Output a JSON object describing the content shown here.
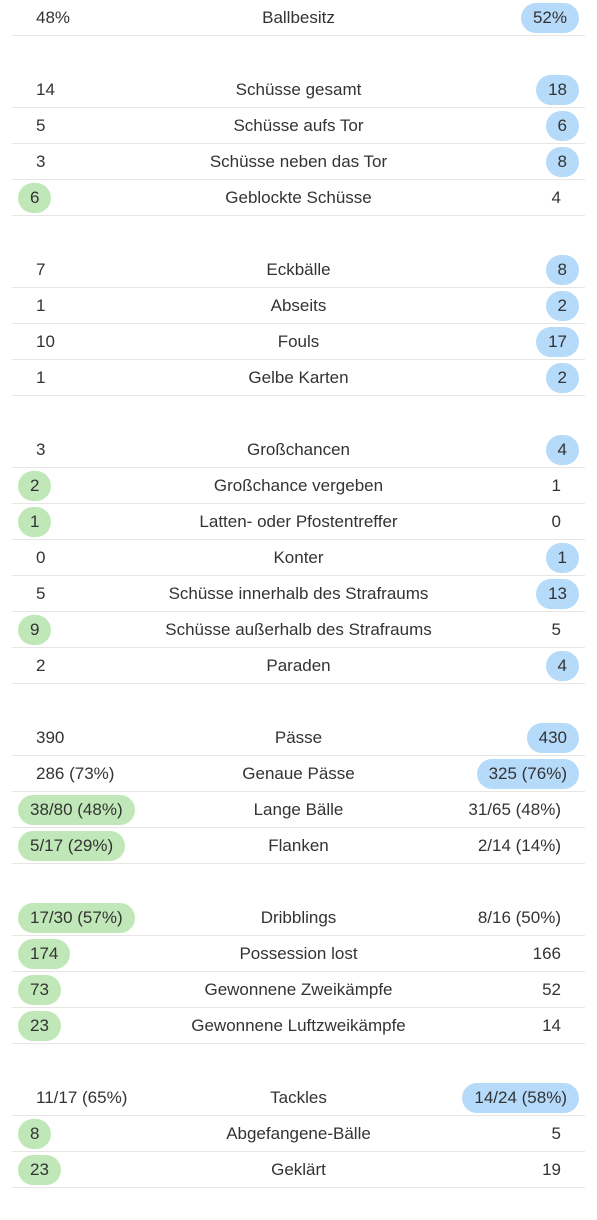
{
  "groups": [
    {
      "rows": [
        {
          "label": "Ballbesitz",
          "home": "48%",
          "away": "52%",
          "winner": "away"
        }
      ]
    },
    {
      "rows": [
        {
          "label": "Schüsse gesamt",
          "home": "14",
          "away": "18",
          "winner": "away"
        },
        {
          "label": "Schüsse aufs Tor",
          "home": "5",
          "away": "6",
          "winner": "away"
        },
        {
          "label": "Schüsse neben das Tor",
          "home": "3",
          "away": "8",
          "winner": "away"
        },
        {
          "label": "Geblockte Schüsse",
          "home": "6",
          "away": "4",
          "winner": "home"
        }
      ]
    },
    {
      "rows": [
        {
          "label": "Eckbälle",
          "home": "7",
          "away": "8",
          "winner": "away"
        },
        {
          "label": "Abseits",
          "home": "1",
          "away": "2",
          "winner": "away"
        },
        {
          "label": "Fouls",
          "home": "10",
          "away": "17",
          "winner": "away"
        },
        {
          "label": "Gelbe Karten",
          "home": "1",
          "away": "2",
          "winner": "away"
        }
      ]
    },
    {
      "rows": [
        {
          "label": "Großchancen",
          "home": "3",
          "away": "4",
          "winner": "away"
        },
        {
          "label": "Großchance vergeben",
          "home": "2",
          "away": "1",
          "winner": "home"
        },
        {
          "label": "Latten- oder Pfostentreffer",
          "home": "1",
          "away": "0",
          "winner": "home"
        },
        {
          "label": "Konter",
          "home": "0",
          "away": "1",
          "winner": "away"
        },
        {
          "label": "Schüsse innerhalb des Strafraums",
          "home": "5",
          "away": "13",
          "winner": "away"
        },
        {
          "label": "Schüsse außerhalb des Strafraums",
          "home": "9",
          "away": "5",
          "winner": "home"
        },
        {
          "label": "Paraden",
          "home": "2",
          "away": "4",
          "winner": "away"
        }
      ]
    },
    {
      "rows": [
        {
          "label": "Pässe",
          "home": "390",
          "away": "430",
          "winner": "away"
        },
        {
          "label": "Genaue Pässe",
          "home": "286 (73%)",
          "away": "325 (76%)",
          "winner": "away"
        },
        {
          "label": "Lange Bälle",
          "home": "38/80 (48%)",
          "away": "31/65 (48%)",
          "winner": "home"
        },
        {
          "label": "Flanken",
          "home": "5/17 (29%)",
          "away": "2/14 (14%)",
          "winner": "home"
        }
      ]
    },
    {
      "rows": [
        {
          "label": "Dribblings",
          "home": "17/30 (57%)",
          "away": "8/16 (50%)",
          "winner": "home"
        },
        {
          "label": "Possession lost",
          "home": "174",
          "away": "166",
          "winner": "home"
        },
        {
          "label": "Gewonnene Zweikämpfe",
          "home": "73",
          "away": "52",
          "winner": "home"
        },
        {
          "label": "Gewonnene Luftzweikämpfe",
          "home": "23",
          "away": "14",
          "winner": "home"
        }
      ]
    },
    {
      "rows": [
        {
          "label": "Tackles",
          "home": "11/17 (65%)",
          "away": "14/24 (58%)",
          "winner": "away"
        },
        {
          "label": "Abgefangene-Bälle",
          "home": "8",
          "away": "5",
          "winner": "home"
        },
        {
          "label": "Geklärt",
          "home": "23",
          "away": "19",
          "winner": "home"
        }
      ]
    }
  ],
  "colors": {
    "home_highlight": "#bfe7b7",
    "away_highlight": "#b5dafa",
    "divider": "#e6e6e6",
    "text": "#333333"
  }
}
